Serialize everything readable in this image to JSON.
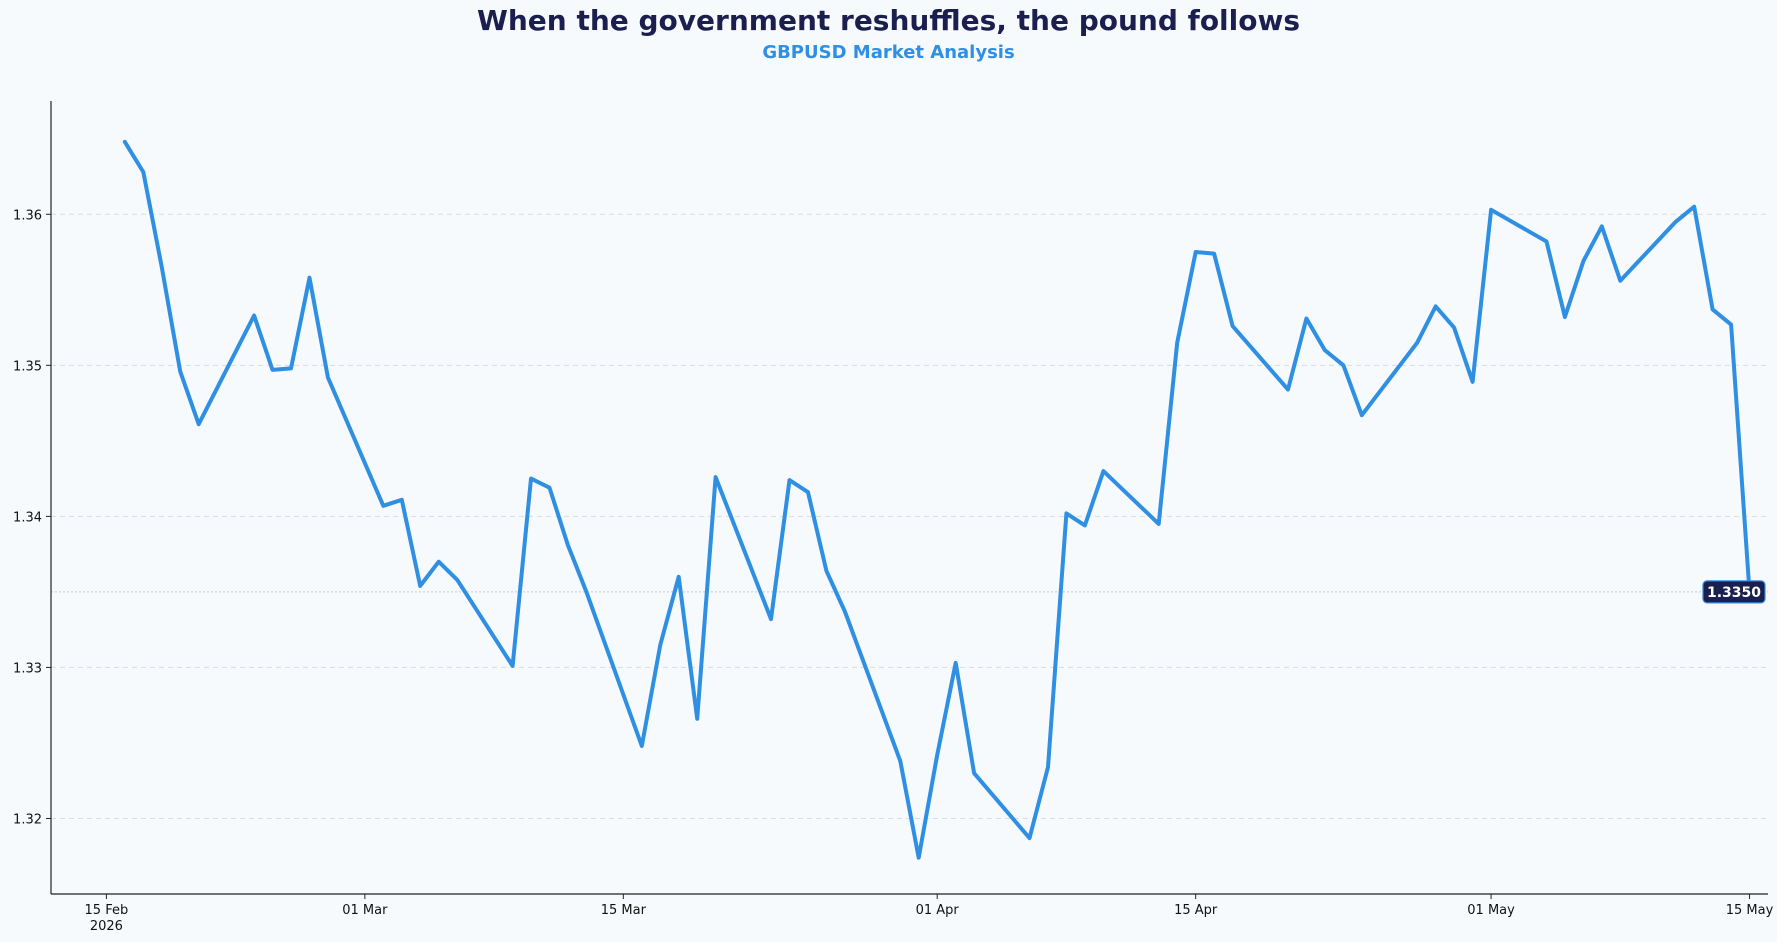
{
  "chart_data": {
    "type": "line",
    "title": "When the government reshuffles, the pound follows",
    "subtitle": "GBPUSD Market Analysis",
    "xlabel": "",
    "ylabel": "",
    "xlim": [
      "2026-02-12",
      "2026-05-16"
    ],
    "ylim": [
      1.315,
      1.3675
    ],
    "grid": "horizontal dashed",
    "legend": "none",
    "colors": {
      "line": "#2f8fe3",
      "title": "#1b1f4e",
      "subtitle": "#2f8fe3",
      "grid": "#d8dde3",
      "badge": "#1b1f4e",
      "background": "#f7fafd"
    },
    "x_ticks": [
      {
        "date": "2026-02-15",
        "label": "15 Feb",
        "sublabel": "2026"
      },
      {
        "date": "2026-03-01",
        "label": "01 Mar",
        "sublabel": ""
      },
      {
        "date": "2026-03-15",
        "label": "15 Mar",
        "sublabel": ""
      },
      {
        "date": "2026-04-01",
        "label": "01 Apr",
        "sublabel": ""
      },
      {
        "date": "2026-04-15",
        "label": "15 Apr",
        "sublabel": ""
      },
      {
        "date": "2026-05-01",
        "label": "01 May",
        "sublabel": ""
      },
      {
        "date": "2026-05-15",
        "label": "15 May",
        "sublabel": ""
      }
    ],
    "y_ticks": [
      {
        "value": 1.32,
        "label": "1.32"
      },
      {
        "value": 1.33,
        "label": "1.33"
      },
      {
        "value": 1.34,
        "label": "1.34"
      },
      {
        "value": 1.35,
        "label": "1.35"
      },
      {
        "value": 1.36,
        "label": "1.36"
      }
    ],
    "last_value_label": "1.3350",
    "series": [
      {
        "x": [
          "2026-02-16",
          "2026-02-17",
          "2026-02-18",
          "2026-02-19",
          "2026-02-20",
          "2026-02-23",
          "2026-02-24",
          "2026-02-25",
          "2026-02-26",
          "2026-02-27",
          "2026-03-02",
          "2026-03-03",
          "2026-03-04",
          "2026-03-05",
          "2026-03-06",
          "2026-03-09",
          "2026-03-10",
          "2026-03-11",
          "2026-03-12",
          "2026-03-13",
          "2026-03-16",
          "2026-03-17",
          "2026-03-18",
          "2026-03-19",
          "2026-03-20",
          "2026-03-23",
          "2026-03-24",
          "2026-03-25",
          "2026-03-26",
          "2026-03-27",
          "2026-03-30",
          "2026-03-31",
          "2026-04-01",
          "2026-04-02",
          "2026-04-03",
          "2026-04-06",
          "2026-04-07",
          "2026-04-08",
          "2026-04-09",
          "2026-04-10",
          "2026-04-13",
          "2026-04-14",
          "2026-04-15",
          "2026-04-16",
          "2026-04-17",
          "2026-04-20",
          "2026-04-21",
          "2026-04-22",
          "2026-04-23",
          "2026-04-24",
          "2026-04-27",
          "2026-04-28",
          "2026-04-29",
          "2026-04-30",
          "2026-05-01",
          "2026-05-04",
          "2026-05-05",
          "2026-05-06",
          "2026-05-07",
          "2026-05-08",
          "2026-05-11",
          "2026-05-12",
          "2026-05-13",
          "2026-05-14",
          "2026-05-15"
        ],
        "values": [
          1.3648,
          1.3628,
          1.3565,
          1.3496,
          1.3461,
          1.3533,
          1.3497,
          1.3498,
          1.3558,
          1.3492,
          1.3407,
          1.3411,
          1.3354,
          1.337,
          1.3358,
          1.3301,
          1.3425,
          1.3419,
          1.3381,
          1.335,
          1.3248,
          1.3315,
          1.336,
          1.3266,
          1.3426,
          1.3332,
          1.3424,
          1.3416,
          1.3364,
          1.3337,
          1.3238,
          1.3174,
          1.3242,
          1.3303,
          1.323,
          1.3187,
          1.3234,
          1.3402,
          1.3394,
          1.343,
          1.3395,
          1.3515,
          1.3575,
          1.3574,
          1.3526,
          1.3484,
          1.3531,
          1.351,
          1.35,
          1.3467,
          1.3515,
          1.3539,
          1.3525,
          1.3489,
          1.3603,
          1.3582,
          1.3532,
          1.3569,
          1.3592,
          1.3556,
          1.3595,
          1.3605,
          1.3537,
          1.3527,
          1.335
        ]
      }
    ]
  }
}
